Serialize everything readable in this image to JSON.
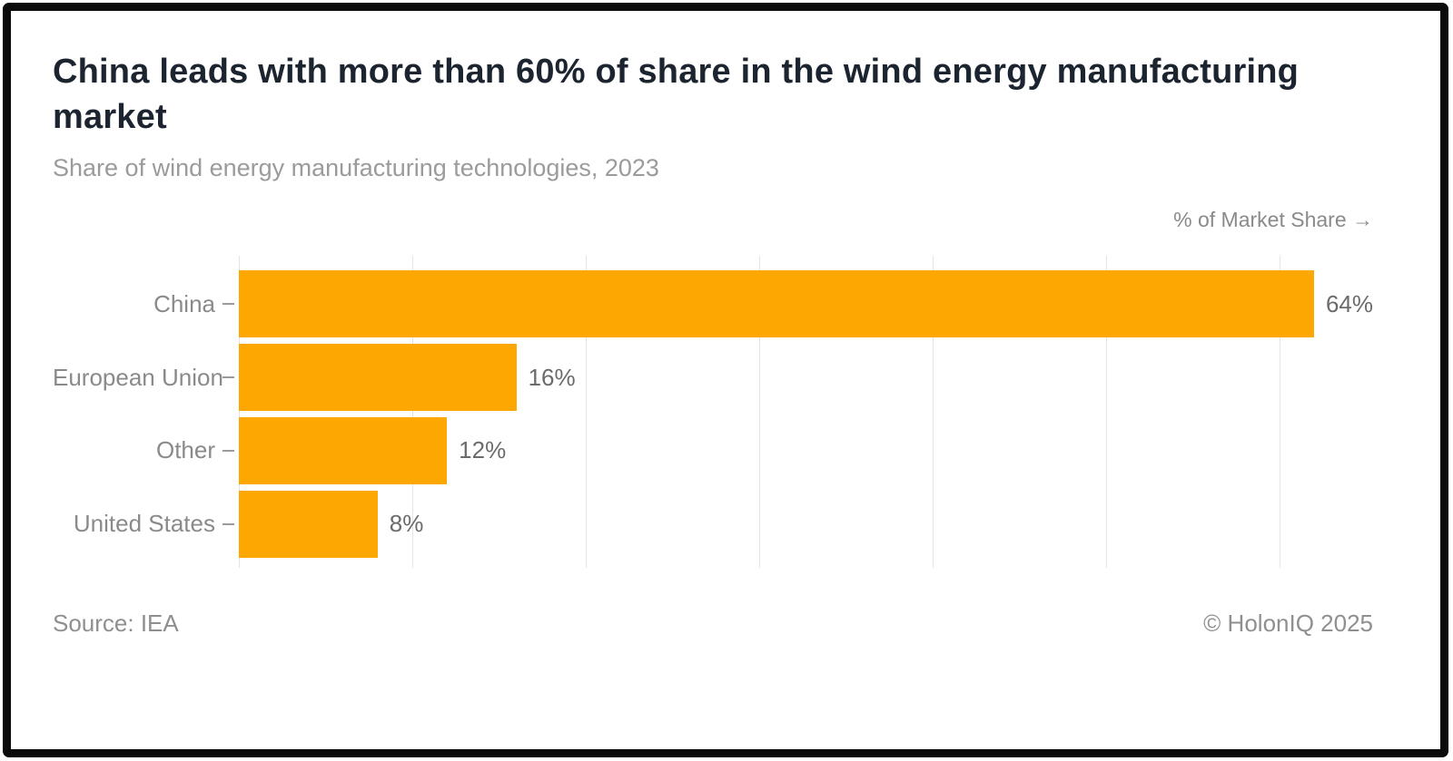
{
  "header": {
    "title": "China leads with more than 60% of share in the wind energy manufacturing market",
    "subtitle": "Share of wind energy manufacturing technologies, 2023"
  },
  "axis": {
    "label": "% of Market Share →"
  },
  "footer": {
    "source": "Source: IEA",
    "copyright": "© HolonIQ 2025"
  },
  "colors": {
    "bar": "#FDA702",
    "title_text": "#1c2430",
    "subtitle_text": "#9b9b9b",
    "label_text": "#8a8a8a",
    "value_text": "#6b6b6b",
    "gridline": "#e4e4e4",
    "frame_border": "#0b0b0b"
  },
  "chart_data": {
    "type": "bar",
    "orientation": "horizontal",
    "title": "China leads with more than 60% of share in the wind energy manufacturing market",
    "subtitle": "Share of wind energy manufacturing technologies, 2023",
    "xlabel": "% of Market Share",
    "ylabel": "",
    "categories": [
      "China",
      "European Union",
      "Other",
      "United States"
    ],
    "values": [
      64,
      16,
      12,
      8
    ],
    "value_labels": [
      "64%",
      "16%",
      "12%",
      "8%"
    ],
    "xlim": [
      0,
      65.4
    ],
    "gridlines": [
      0,
      10,
      20,
      30,
      40,
      50,
      60
    ],
    "grid": true,
    "legend": false,
    "bar_color": "#FDA702",
    "source": "Source: IEA",
    "copyright": "© HolonIQ 2025"
  }
}
